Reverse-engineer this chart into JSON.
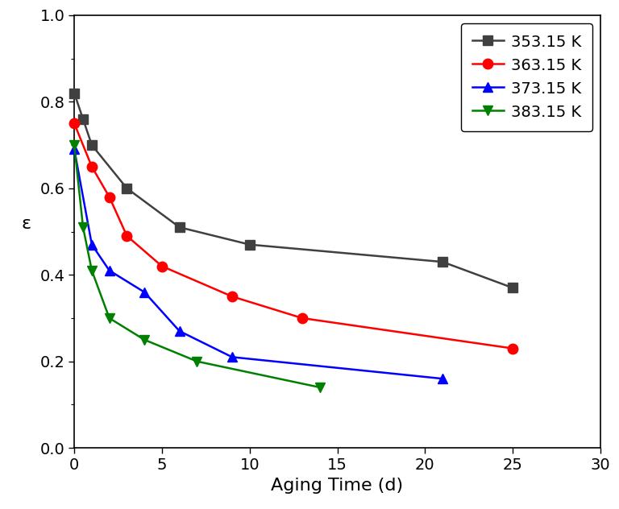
{
  "series": [
    {
      "label": "353.15 K",
      "color": "#404040",
      "marker": "s",
      "x": [
        0,
        0.5,
        1,
        3,
        6,
        10,
        21,
        25
      ],
      "y": [
        0.82,
        0.76,
        0.7,
        0.6,
        0.51,
        0.47,
        0.43,
        0.37
      ]
    },
    {
      "label": "363.15 K",
      "color": "#ff0000",
      "marker": "o",
      "x": [
        0,
        1,
        2,
        3,
        5,
        9,
        13,
        25
      ],
      "y": [
        0.75,
        0.65,
        0.58,
        0.49,
        0.42,
        0.35,
        0.3,
        0.23
      ]
    },
    {
      "label": "373.15 K",
      "color": "#0000ff",
      "marker": "^",
      "x": [
        0,
        1,
        2,
        4,
        6,
        9,
        21
      ],
      "y": [
        0.69,
        0.47,
        0.41,
        0.36,
        0.27,
        0.21,
        0.16
      ]
    },
    {
      "label": "383.15 K",
      "color": "#008000",
      "marker": "v",
      "x": [
        0,
        0.5,
        1,
        2,
        4,
        7,
        14
      ],
      "y": [
        0.7,
        0.51,
        0.41,
        0.3,
        0.25,
        0.2,
        0.14
      ]
    }
  ],
  "xlabel": "Aging Time (d)",
  "ylabel": "ε",
  "xlim": [
    0,
    30
  ],
  "ylim": [
    0.0,
    1.0
  ],
  "xticks": [
    0,
    5,
    10,
    15,
    20,
    25,
    30
  ],
  "yticks": [
    0.0,
    0.2,
    0.4,
    0.6,
    0.8,
    1.0
  ],
  "markersize": 9,
  "linewidth": 1.8,
  "legend_loc": "upper right",
  "background_color": "#ffffff",
  "xlabel_fontsize": 16,
  "ylabel_fontsize": 16,
  "tick_labelsize": 14,
  "legend_fontsize": 14
}
